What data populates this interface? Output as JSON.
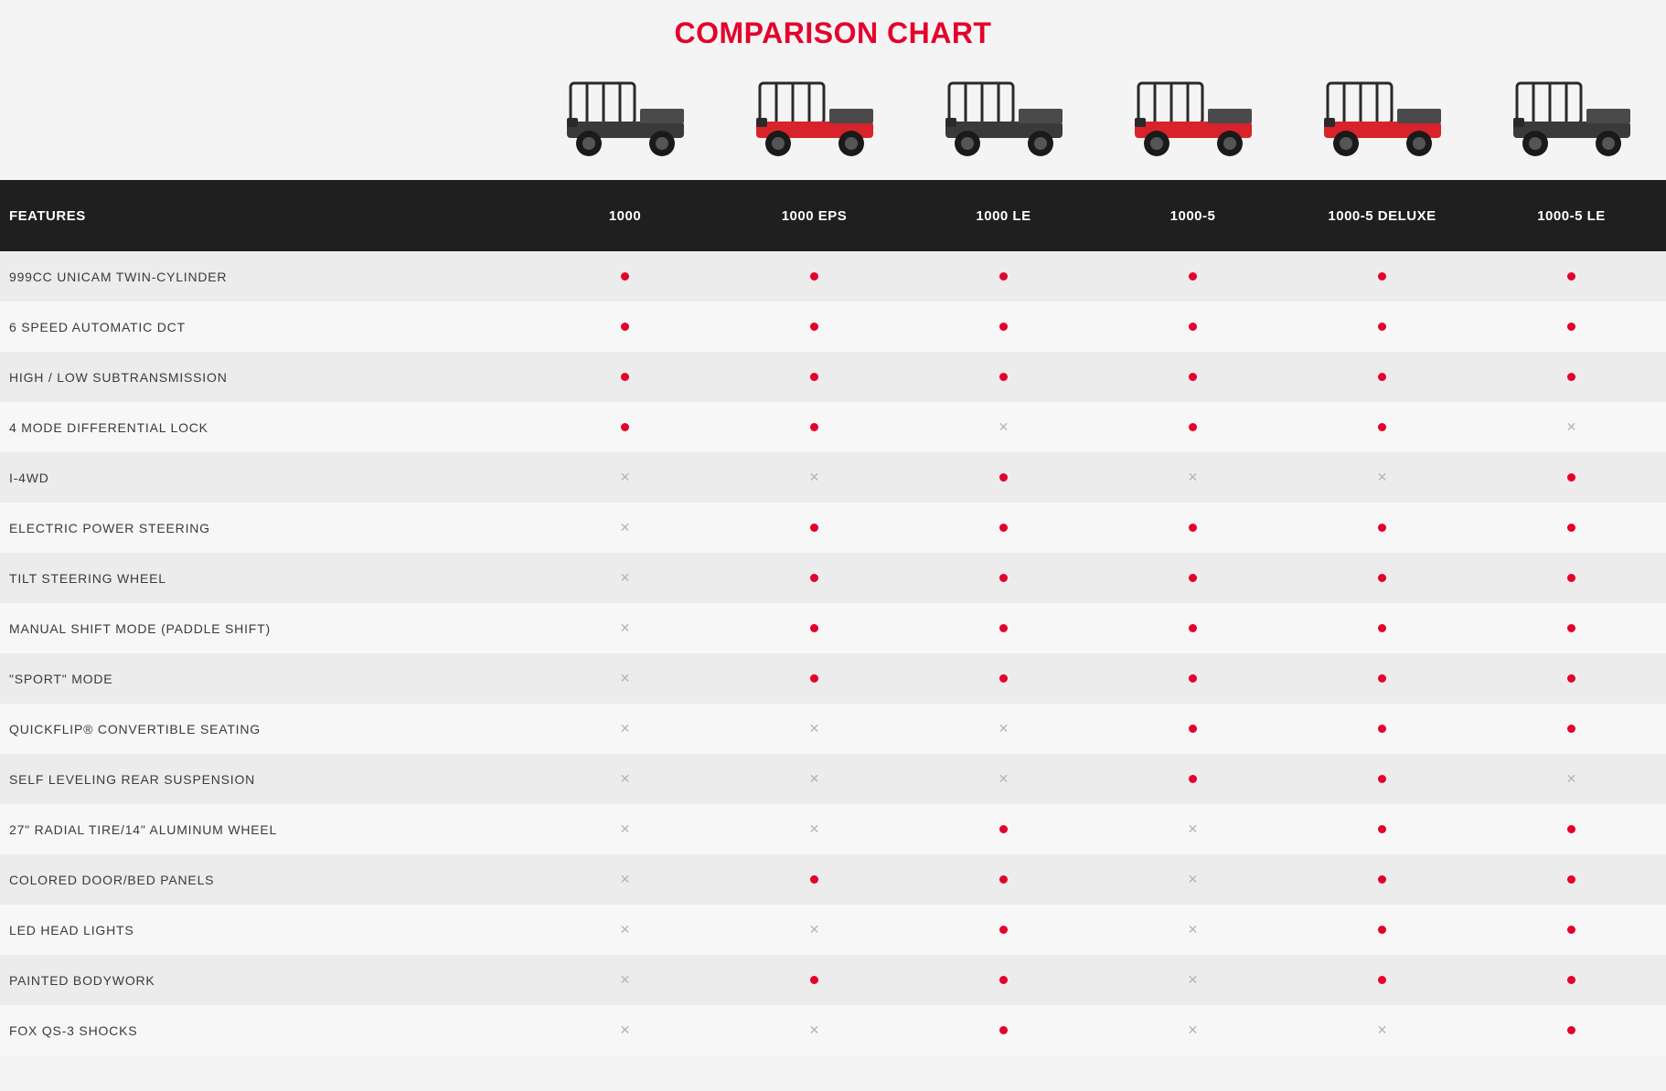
{
  "title": "COMPARISON CHART",
  "title_color": "#e4002b",
  "header": {
    "features_label": "FEATURES",
    "columns": [
      "1000",
      "1000 EPS",
      "1000 LE",
      "1000-5",
      "1000-5 DELUXE",
      "1000-5 LE"
    ],
    "bg_color": "#1f1f1f",
    "text_color": "#ffffff"
  },
  "vehicle_colors": [
    "#3a3a3a",
    "#d8232a",
    "#3a3a3a",
    "#d8232a",
    "#d8232a",
    "#3a3a3a"
  ],
  "dot_color": "#e4002b",
  "x_color": "#b5b5b5",
  "row_colors": {
    "even": "#ececec",
    "odd": "#f7f7f7"
  },
  "features": [
    {
      "label": "999CC UNICAM TWIN-CYLINDER",
      "values": [
        "dot",
        "dot",
        "dot",
        "dot",
        "dot",
        "dot"
      ]
    },
    {
      "label": "6 SPEED AUTOMATIC DCT",
      "values": [
        "dot",
        "dot",
        "dot",
        "dot",
        "dot",
        "dot"
      ]
    },
    {
      "label": "HIGH / LOW SUBTRANSMISSION",
      "values": [
        "dot",
        "dot",
        "dot",
        "dot",
        "dot",
        "dot"
      ]
    },
    {
      "label": "4 MODE DIFFERENTIAL LOCK",
      "values": [
        "dot",
        "dot",
        "x",
        "dot",
        "dot",
        "x"
      ]
    },
    {
      "label": "I-4WD",
      "values": [
        "x",
        "x",
        "dot",
        "x",
        "x",
        "dot"
      ]
    },
    {
      "label": "ELECTRIC POWER STEERING",
      "values": [
        "x",
        "dot",
        "dot",
        "dot",
        "dot",
        "dot"
      ]
    },
    {
      "label": "TILT STEERING WHEEL",
      "values": [
        "x",
        "dot",
        "dot",
        "dot",
        "dot",
        "dot"
      ]
    },
    {
      "label": "MANUAL SHIFT MODE (PADDLE SHIFT)",
      "values": [
        "x",
        "dot",
        "dot",
        "dot",
        "dot",
        "dot"
      ]
    },
    {
      "label": "\"SPORT\" MODE",
      "values": [
        "x",
        "dot",
        "dot",
        "dot",
        "dot",
        "dot"
      ]
    },
    {
      "label": "QUICKFLIP® CONVERTIBLE SEATING",
      "values": [
        "x",
        "x",
        "x",
        "dot",
        "dot",
        "dot"
      ]
    },
    {
      "label": "SELF LEVELING REAR SUSPENSION",
      "values": [
        "x",
        "x",
        "x",
        "dot",
        "dot",
        "x"
      ]
    },
    {
      "label": "27\" RADIAL TIRE/14\" ALUMINUM WHEEL",
      "values": [
        "x",
        "x",
        "dot",
        "x",
        "dot",
        "dot"
      ]
    },
    {
      "label": "COLORED DOOR/BED PANELS",
      "values": [
        "x",
        "dot",
        "dot",
        "x",
        "dot",
        "dot"
      ]
    },
    {
      "label": "LED HEAD LIGHTS",
      "values": [
        "x",
        "x",
        "dot",
        "x",
        "dot",
        "dot"
      ]
    },
    {
      "label": "PAINTED BODYWORK",
      "values": [
        "x",
        "dot",
        "dot",
        "x",
        "dot",
        "dot"
      ]
    },
    {
      "label": "FOX QS-3 SHOCKS",
      "values": [
        "x",
        "x",
        "dot",
        "x",
        "x",
        "dot"
      ]
    }
  ]
}
